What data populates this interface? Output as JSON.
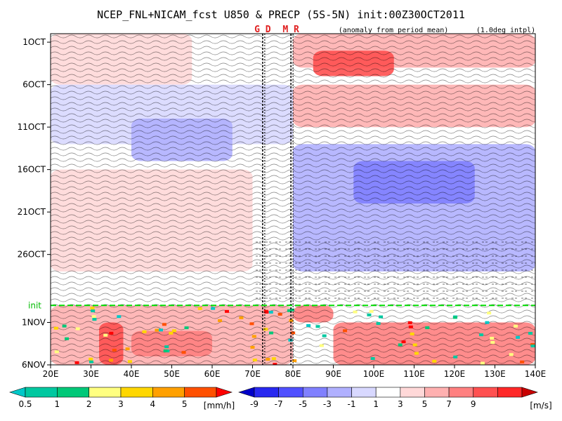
{
  "chart_data": {
    "type": "heatmap",
    "title": "NCEP_FNL+NICAM_fcst U850 & PRECP (5S-5N) init:00Z30OCT2011",
    "annotation_anomaly": "(anomaly from period mean)",
    "annotation_interp": "(1.0deg intpl)",
    "longitude_markers": [
      {
        "label": "G D",
        "lon": 72.5
      },
      {
        "label": "M R",
        "lon": 79.5
      }
    ],
    "init_label": "init",
    "init_date_row": 31,
    "x_ticks": [
      "20E",
      "30E",
      "40E",
      "50E",
      "60E",
      "70E",
      "80E",
      "90E",
      "100E",
      "110E",
      "120E",
      "130E",
      "140E"
    ],
    "x_range": [
      20,
      140
    ],
    "y_ticks": [
      {
        "label": "1OCT",
        "row": 0
      },
      {
        "label": "6OCT",
        "row": 5
      },
      {
        "label": "11OCT",
        "row": 10
      },
      {
        "label": "16OCT",
        "row": 15
      },
      {
        "label": "21OCT",
        "row": 20
      },
      {
        "label": "26OCT",
        "row": 25
      },
      {
        "label": "1NOV",
        "row": 33
      },
      {
        "label": "6NOV",
        "row": 38
      }
    ],
    "y_row_range": [
      -1,
      38
    ],
    "u850_anomaly_field": [
      {
        "lat_band": "5S-5N",
        "lon_min": 20,
        "lon_max": 55,
        "row_min": -1,
        "row_max": 5,
        "value": 2
      },
      {
        "lat_band": "5S-5N",
        "lon_min": 80,
        "lon_max": 140,
        "row_min": -1,
        "row_max": 3,
        "value": 4
      },
      {
        "lat_band": "5S-5N",
        "lon_min": 85,
        "lon_max": 105,
        "row_min": 1,
        "row_max": 4,
        "value": 7
      },
      {
        "lat_band": "5S-5N",
        "lon_min": 80,
        "lon_max": 140,
        "row_min": 5,
        "row_max": 10,
        "value": 4
      },
      {
        "lat_band": "5S-5N",
        "lon_min": 20,
        "lon_max": 80,
        "row_min": 5,
        "row_max": 12,
        "value": -3
      },
      {
        "lat_band": "5S-5N",
        "lon_min": 40,
        "lon_max": 65,
        "row_min": 9,
        "row_max": 14,
        "value": -5
      },
      {
        "lat_band": "5S-5N",
        "lon_min": 80,
        "lon_max": 140,
        "row_min": 12,
        "row_max": 27,
        "value": -4
      },
      {
        "lat_band": "5S-5N",
        "lon_min": 95,
        "lon_max": 125,
        "row_min": 14,
        "row_max": 19,
        "value": -7
      },
      {
        "lat_band": "5S-5N",
        "lon_min": 20,
        "lon_max": 70,
        "row_min": 15,
        "row_max": 27,
        "value": 2
      },
      {
        "lat_band": "5S-5N",
        "lon_min": 20,
        "lon_max": 80,
        "row_min": 31,
        "row_max": 38,
        "value": 3
      },
      {
        "lat_band": "5S-5N",
        "lon_min": 32,
        "lon_max": 38,
        "row_min": 33,
        "row_max": 38,
        "value": 8
      },
      {
        "lat_band": "5S-5N",
        "lon_min": 40,
        "lon_max": 60,
        "row_min": 34,
        "row_max": 37,
        "value": 6
      },
      {
        "lat_band": "5S-5N",
        "lon_min": 90,
        "lon_max": 140,
        "row_min": 33,
        "row_max": 38,
        "value": 5
      },
      {
        "lat_band": "5S-5N",
        "lon_min": 80,
        "lon_max": 90,
        "row_min": 31,
        "row_max": 33,
        "value": 5
      }
    ],
    "colorbar_precip": {
      "unit": "[mm/h]",
      "ticks": [
        "0.5",
        "1",
        "2",
        "3",
        "4",
        "5"
      ],
      "colors": [
        "#00c8c8",
        "#00c8a0",
        "#00c878",
        "#ffff80",
        "#ffd700",
        "#ffa000",
        "#ff5000",
        "#ff0000"
      ]
    },
    "colorbar_u850": {
      "unit": "[m/s]",
      "ticks": [
        "-9",
        "-7",
        "-5",
        "-3",
        "-1",
        "1",
        "3",
        "5",
        "7",
        "9"
      ],
      "colors": [
        "#0000c8",
        "#2828f0",
        "#5050ff",
        "#8080ff",
        "#b0b0ff",
        "#d8d8ff",
        "#ffffff",
        "#ffd8d8",
        "#ffb0b0",
        "#ff8080",
        "#ff5050",
        "#ff2828",
        "#c80000"
      ]
    }
  }
}
